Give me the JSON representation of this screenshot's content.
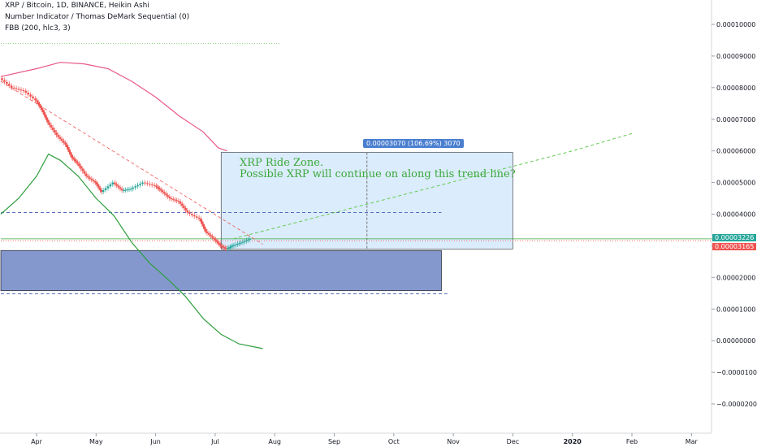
{
  "header": {
    "symbol_line": "XRP / Bitcoin, 1D, BINANCE, Heikin Ashi",
    "indicator_line": "Number Indicator / Thomas DeMark Sequential (0)",
    "fbb_line": "FBB (200, hlc3, 3)"
  },
  "annotation": {
    "line1": "XRP Ride Zone.",
    "line2": "Possible XRP will continue on along this trend line?"
  },
  "measure_label": "0.00003070 (106.69%) 3070",
  "price_tags": {
    "last": "0.00003226",
    "low": "0.00003165"
  },
  "colors": {
    "background": "#ffffff",
    "fbb_upper": "#e8588a",
    "fbb_lower": "#2e9e3e",
    "candle_up": "#26a69a",
    "candle_down": "#ef5350",
    "trend_dashed": "#66cc55",
    "zone_fill": "#cfe6fb",
    "support_box": "#6f86c6",
    "tag_green": "#26a69a",
    "tag_red": "#ef5350"
  },
  "chart_data": {
    "type": "candlestick",
    "y_axis": {
      "ticks": [
        "0.00010000",
        "0.00009000",
        "0.00008000",
        "0.00007000",
        "0.00006000",
        "0.00005000",
        "0.00004000",
        "0.00003000",
        "0.00002000",
        "0.00001000",
        "0.00000000",
        "−0.00001000",
        "−0.00002000"
      ],
      "tick_values": [
        0.0001,
        9e-05,
        8e-05,
        7e-05,
        6e-05,
        5e-05,
        4e-05,
        3e-05,
        2e-05,
        1e-05,
        0,
        -1e-05,
        -2e-05
      ],
      "range": [
        -2.35e-05,
        0.000113
      ]
    },
    "x_axis": {
      "labels": [
        "Apr",
        "May",
        "Jun",
        "Jul",
        "Aug",
        "Sep",
        "Oct",
        "Nov",
        "Dec",
        "2020",
        "Feb",
        "Mar"
      ],
      "month_index": [
        0,
        1,
        2,
        3,
        4,
        5,
        6,
        7,
        8,
        9,
        10,
        11
      ]
    },
    "price_series": {
      "name": "XRP/BTC",
      "points": [
        [
          -0.6,
          8.3e-05
        ],
        [
          -0.4,
          8e-05
        ],
        [
          -0.2,
          7.9e-05
        ],
        [
          0,
          7.6e-05
        ],
        [
          0.1,
          7.3e-05
        ],
        [
          0.2,
          6.9e-05
        ],
        [
          0.35,
          6.5e-05
        ],
        [
          0.5,
          6.2e-05
        ],
        [
          0.6,
          5.8e-05
        ],
        [
          0.7,
          5.6e-05
        ],
        [
          0.85,
          5.2e-05
        ],
        [
          1.0,
          5e-05
        ],
        [
          1.1,
          4.7e-05
        ],
        [
          1.3,
          5e-05
        ],
        [
          1.45,
          4.75e-05
        ],
        [
          1.6,
          4.8e-05
        ],
        [
          1.8,
          5e-05
        ],
        [
          2.0,
          4.9e-05
        ],
        [
          2.1,
          4.75e-05
        ],
        [
          2.25,
          4.5e-05
        ],
        [
          2.4,
          4.4e-05
        ],
        [
          2.55,
          4.05e-05
        ],
        [
          2.75,
          3.85e-05
        ],
        [
          2.85,
          3.45e-05
        ],
        [
          3.0,
          3.2e-05
        ],
        [
          3.1,
          3e-05
        ],
        [
          3.2,
          2.9e-05
        ],
        [
          3.3,
          3e-05
        ],
        [
          3.45,
          3.1e-05
        ],
        [
          3.6,
          3.22e-05
        ]
      ]
    },
    "fbb_upper": [
      [
        -0.6,
        8.35e-05
      ],
      [
        0,
        8.6e-05
      ],
      [
        0.4,
        8.8e-05
      ],
      [
        0.8,
        8.75e-05
      ],
      [
        1.2,
        8.6e-05
      ],
      [
        1.6,
        8.2e-05
      ],
      [
        2.0,
        7.7e-05
      ],
      [
        2.4,
        7.1e-05
      ],
      [
        2.8,
        6.6e-05
      ],
      [
        3.05,
        6.1e-05
      ],
      [
        3.2,
        6e-05
      ]
    ],
    "fbb_lower": [
      [
        -0.6,
        4e-05
      ],
      [
        -0.3,
        4.5e-05
      ],
      [
        0.0,
        5.2e-05
      ],
      [
        0.2,
        5.9e-05
      ],
      [
        0.4,
        5.7e-05
      ],
      [
        0.7,
        5.2e-05
      ],
      [
        1.0,
        4.5e-05
      ],
      [
        1.3,
        3.95e-05
      ],
      [
        1.6,
        3.1e-05
      ],
      [
        1.9,
        2.45e-05
      ],
      [
        2.2,
        1.95e-05
      ],
      [
        2.5,
        1.4e-05
      ],
      [
        2.8,
        7e-06
      ],
      [
        3.1,
        2e-06
      ],
      [
        3.4,
        -1e-06
      ],
      [
        3.8,
        -2.5e-06
      ]
    ],
    "trend_projection": [
      [
        3.3,
        3.22e-05
      ],
      [
        9.0,
        6e-05
      ],
      [
        10.0,
        6.55e-05
      ]
    ],
    "measure_zone": {
      "x": [
        3.1,
        8.0
      ],
      "y": [
        2.9e-05,
        5.95e-05
      ]
    },
    "support_box": {
      "x": [
        -0.6,
        6.8
      ],
      "y": [
        1.58e-05,
        2.85e-05
      ]
    },
    "horizontal_lines": [
      {
        "y": 9.4e-05,
        "x": [
          -0.6,
          4.1
        ],
        "style": "dotted-green"
      },
      {
        "y": 4.05e-05,
        "x": [
          -0.6,
          6.8
        ],
        "style": "dashed-blue"
      },
      {
        "y": 1.48e-05,
        "x": [
          -0.6,
          6.9
        ],
        "style": "dashed-blue"
      },
      {
        "y": 3.22e-05,
        "x": [
          -0.6,
          11.6
        ],
        "style": "solid-green"
      },
      {
        "y": 3.16e-05,
        "x": [
          -0.6,
          11.6
        ],
        "style": "dotted-red"
      }
    ]
  }
}
